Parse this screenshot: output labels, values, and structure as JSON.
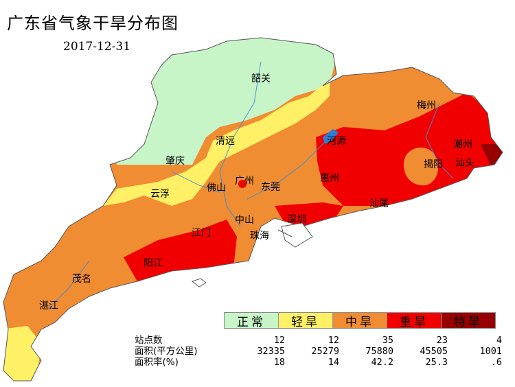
{
  "title": "广东省气象干旱分布图",
  "date": "2017-12-31",
  "cities": [
    "韶关",
    "梅州",
    "清远",
    "潮州",
    "河源",
    "肇庆",
    "揭阳",
    "汕头",
    "广州",
    "惠州",
    "佛山",
    "东莞",
    "云浮",
    "汕尾",
    "中山",
    "深圳",
    "江门",
    "珠海",
    "阳江",
    "茂名",
    "湛江"
  ],
  "legend": [
    {
      "label": "正常",
      "color": "#c8f5c8"
    },
    {
      "label": "轻旱",
      "color": "#fff066"
    },
    {
      "label": "中旱",
      "color": "#f08c32"
    },
    {
      "label": "重旱",
      "color": "#f00000"
    },
    {
      "label": "特旱",
      "color": "#960000"
    }
  ],
  "stats": {
    "rows": [
      {
        "label": "站点数",
        "values": [
          "12",
          "12",
          "35",
          "23",
          "4"
        ]
      },
      {
        "label": "面积(平方公里)",
        "values": [
          "32335",
          "25279",
          "75880",
          "45505",
          "1001"
        ]
      },
      {
        "label": "面积率(%)",
        "values": [
          "18",
          "14",
          "42.2",
          "25.3",
          ".6"
        ]
      }
    ]
  }
}
